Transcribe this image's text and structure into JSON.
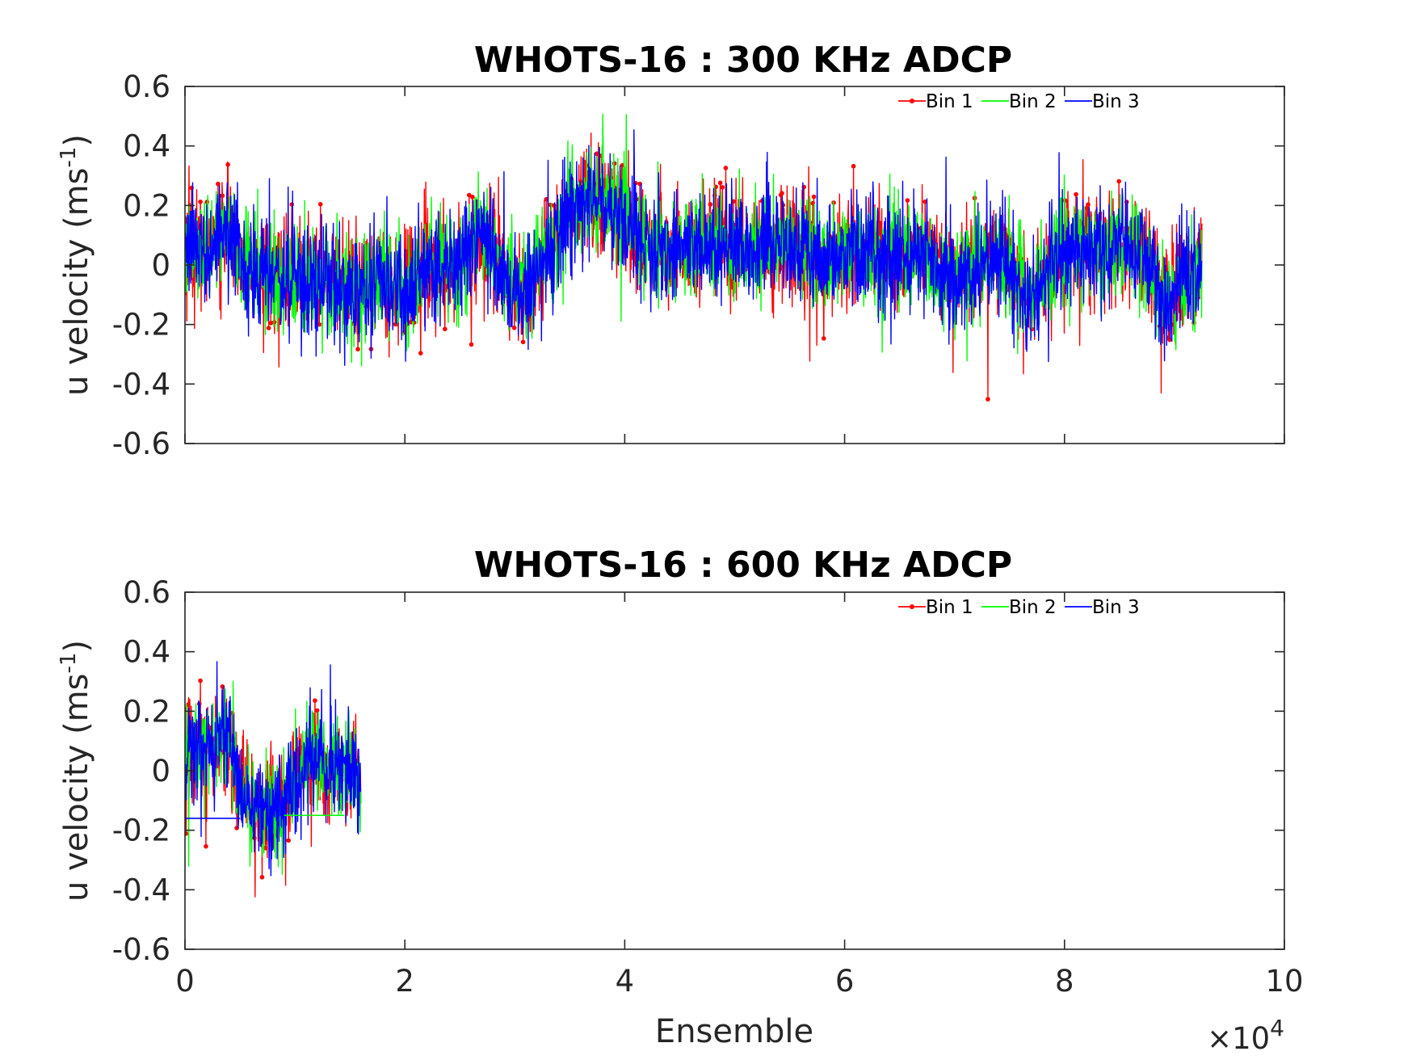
{
  "chart_data": [
    {
      "type": "line",
      "title": "WHOTS-16 : 300 KHz ADCP",
      "ylabel": "u velocity (ms-1)",
      "ylabel_main": "u velocity (ms",
      "ylabel_sup": "-1",
      "ylabel_close": ")",
      "xlabel": "",
      "xlim": [
        0,
        100000
      ],
      "ylim": [
        -0.6,
        0.6
      ],
      "yticks": [
        "0.6",
        "0.4",
        "0.2",
        "0",
        "-0.2",
        "-0.4",
        "-0.6"
      ],
      "ytick_values": [
        0.6,
        0.4,
        0.2,
        0,
        -0.2,
        -0.4,
        -0.6
      ],
      "xtick_values": [
        0,
        20000,
        40000,
        60000,
        80000,
        100000
      ],
      "xtick_labels_visible": false,
      "legend": {
        "placement": "top-right",
        "entries": [
          {
            "name": "Bin 1",
            "color": "#ff0000",
            "marker": "dot"
          },
          {
            "name": "Bin 2",
            "color": "#00ff00",
            "marker": "none"
          },
          {
            "name": "Bin 3",
            "color": "#0000ff",
            "marker": "none"
          }
        ]
      },
      "series": [
        {
          "name": "Bin 1",
          "color": "#ff0000",
          "x_range": [
            0,
            92500
          ],
          "noise_amplitude": 0.09,
          "envelope_x": [
            0,
            2000,
            4000,
            5000,
            8000,
            12000,
            15000,
            18000,
            20000,
            22000,
            25000,
            27000,
            29000,
            31000,
            33000,
            35000,
            37000,
            39000,
            41000,
            43000,
            46000,
            49000,
            52000,
            55000,
            58000,
            61000,
            64000,
            67000,
            70000,
            73000,
            75000,
            77000,
            80000,
            83000,
            85000,
            87000,
            89000,
            91000,
            92500
          ],
          "envelope_y": [
            0.05,
            0.08,
            0.12,
            0.0,
            -0.05,
            -0.05,
            -0.08,
            -0.05,
            -0.12,
            0.0,
            0.0,
            0.12,
            -0.03,
            -0.12,
            0.05,
            0.18,
            0.22,
            0.2,
            0.12,
            0.05,
            0.05,
            0.08,
            0.05,
            0.08,
            0.0,
            0.05,
            0.02,
            0.03,
            -0.05,
            0.03,
            0.0,
            -0.1,
            0.05,
            0.05,
            0.05,
            0.05,
            -0.12,
            -0.05,
            -0.02
          ]
        },
        {
          "name": "Bin 2",
          "color": "#00ff00",
          "x_range": [
            0,
            92500
          ],
          "noise_amplitude": 0.085,
          "envelope_x": [
            0,
            2000,
            4000,
            5000,
            8000,
            12000,
            15000,
            18000,
            20000,
            22000,
            25000,
            27000,
            29000,
            31000,
            33000,
            35000,
            37000,
            39000,
            41000,
            43000,
            46000,
            49000,
            52000,
            55000,
            58000,
            61000,
            64000,
            67000,
            70000,
            73000,
            75000,
            77000,
            80000,
            83000,
            85000,
            87000,
            89000,
            91000,
            92500
          ],
          "envelope_y": [
            0.05,
            0.08,
            0.12,
            0.0,
            -0.05,
            -0.05,
            -0.08,
            -0.05,
            -0.12,
            0.0,
            0.0,
            0.12,
            -0.03,
            -0.12,
            0.05,
            0.18,
            0.22,
            0.2,
            0.12,
            0.05,
            0.05,
            0.08,
            0.05,
            0.08,
            0.0,
            0.05,
            0.02,
            0.03,
            -0.05,
            0.03,
            0.0,
            -0.1,
            0.05,
            0.05,
            0.05,
            0.05,
            -0.12,
            -0.05,
            -0.02
          ]
        },
        {
          "name": "Bin 3",
          "color": "#0000ff",
          "x_range": [
            0,
            92500
          ],
          "noise_amplitude": 0.09,
          "envelope_x": [
            0,
            2000,
            4000,
            5000,
            8000,
            12000,
            15000,
            18000,
            20000,
            22000,
            25000,
            27000,
            29000,
            31000,
            33000,
            35000,
            37000,
            39000,
            41000,
            43000,
            46000,
            49000,
            52000,
            55000,
            58000,
            61000,
            64000,
            67000,
            70000,
            73000,
            75000,
            77000,
            80000,
            83000,
            85000,
            87000,
            89000,
            91000,
            92500
          ],
          "envelope_y": [
            0.05,
            0.08,
            0.12,
            0.0,
            -0.05,
            -0.05,
            -0.08,
            -0.05,
            -0.12,
            0.0,
            0.0,
            0.12,
            -0.03,
            -0.12,
            0.05,
            0.18,
            0.22,
            0.2,
            0.12,
            0.05,
            0.05,
            0.08,
            0.05,
            0.08,
            0.0,
            0.05,
            0.02,
            0.03,
            -0.05,
            0.03,
            0.0,
            -0.1,
            0.05,
            0.05,
            0.05,
            0.05,
            -0.12,
            -0.05,
            -0.02
          ]
        }
      ]
    },
    {
      "type": "line",
      "title": "WHOTS-16 : 600 KHz ADCP",
      "ylabel": "u velocity (ms-1)",
      "ylabel_main": "u velocity (ms",
      "ylabel_sup": "-1",
      "ylabel_close": ")",
      "xlabel": "Ensemble",
      "xlim": [
        0,
        100000
      ],
      "ylim": [
        -0.6,
        0.6
      ],
      "yticks": [
        "0.6",
        "0.4",
        "0.2",
        "0",
        "-0.2",
        "-0.4",
        "-0.6"
      ],
      "ytick_values": [
        0.6,
        0.4,
        0.2,
        0,
        -0.2,
        -0.4,
        -0.6
      ],
      "xtick_values": [
        0,
        20000,
        40000,
        60000,
        80000,
        100000
      ],
      "xticks": [
        "0",
        "2",
        "4",
        "6",
        "8",
        "10"
      ],
      "x_multiplier_base": "×10",
      "x_multiplier_exp": "4",
      "legend": {
        "placement": "top-right",
        "entries": [
          {
            "name": "Bin 1",
            "color": "#ff0000",
            "marker": "dot"
          },
          {
            "name": "Bin 2",
            "color": "#00ff00",
            "marker": "none"
          },
          {
            "name": "Bin 3",
            "color": "#0000ff",
            "marker": "none"
          }
        ]
      },
      "annotations": [
        {
          "type": "hline-segment",
          "x_range": [
            0,
            5000
          ],
          "y": -0.16,
          "color": "#0000ff"
        },
        {
          "type": "hline-segment",
          "x_range": [
            9000,
            14500
          ],
          "y": -0.15,
          "color": "#00ff00"
        }
      ],
      "series": [
        {
          "name": "Bin 1",
          "color": "#ff0000",
          "x_range": [
            0,
            16000
          ],
          "noise_amplitude": 0.085,
          "envelope_x": [
            0,
            2000,
            4000,
            5000,
            7000,
            9000,
            11000,
            13000,
            15000,
            16000
          ],
          "envelope_y": [
            0.05,
            0.08,
            0.1,
            -0.05,
            -0.15,
            -0.1,
            0.05,
            0.0,
            0.0,
            -0.05
          ]
        },
        {
          "name": "Bin 2",
          "color": "#00ff00",
          "x_range": [
            0,
            16000
          ],
          "noise_amplitude": 0.08,
          "envelope_x": [
            0,
            2000,
            4000,
            5000,
            7000,
            9000,
            11000,
            13000,
            15000,
            16000
          ],
          "envelope_y": [
            0.05,
            0.08,
            0.1,
            -0.05,
            -0.15,
            -0.1,
            0.05,
            0.0,
            0.0,
            -0.05
          ]
        },
        {
          "name": "Bin 3",
          "color": "#0000ff",
          "x_range": [
            0,
            16000
          ],
          "noise_amplitude": 0.085,
          "envelope_x": [
            0,
            2000,
            4000,
            5000,
            7000,
            9000,
            11000,
            13000,
            15000,
            16000
          ],
          "envelope_y": [
            0.05,
            0.08,
            0.1,
            -0.05,
            -0.15,
            -0.1,
            0.05,
            0.0,
            0.0,
            -0.05
          ]
        }
      ]
    }
  ]
}
